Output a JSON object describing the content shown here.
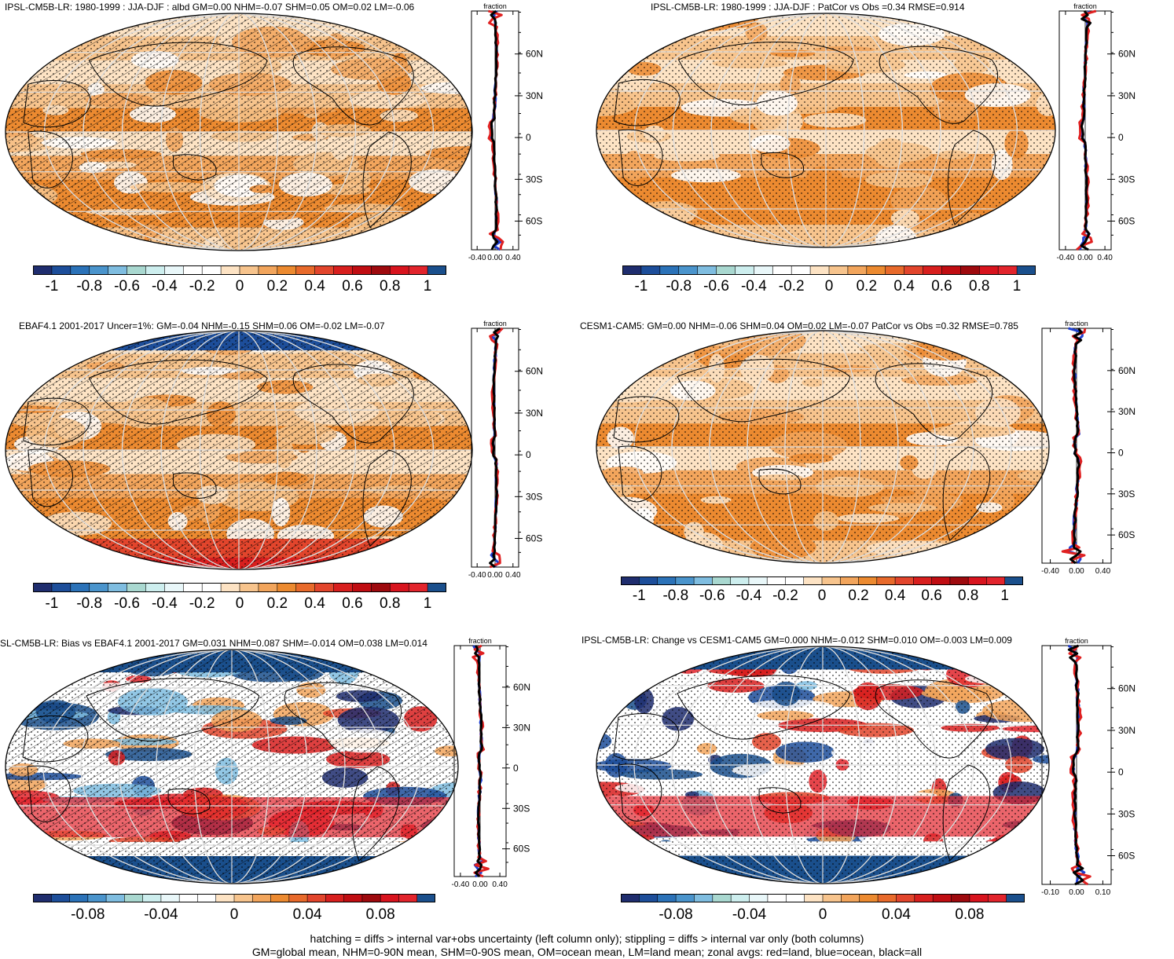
{
  "panels": [
    {
      "title": "IPSL-CM5B-LR: 1980-1999 : JJA-DJF : albd GM=0.00 NHM=-0.07 SHM=0.05 OM=0.02 LM=-0.06",
      "zonal_xlabel": "fraction",
      "zonal_xticks": [
        "-0.40",
        "0.00",
        "0.40"
      ],
      "lat_ticks": [
        "60N",
        "30N",
        "0",
        "30S",
        "60S"
      ],
      "cbar_labels": [
        "-1",
        "-0.8",
        "-0.6",
        "-0.4",
        "-0.2",
        "0",
        "0.2",
        "0.4",
        "0.6",
        "0.8",
        "1"
      ],
      "hatching": true
    },
    {
      "title": "IPSL-CM5B-LR: 1980-1999 : JJA-DJF : PatCor vs Obs =0.34 RMSE=0.914",
      "zonal_xlabel": "fraction",
      "zonal_xticks": [
        "-0.40",
        "0.00",
        "0.40"
      ],
      "lat_ticks": [
        "60N",
        "30N",
        "0",
        "30S",
        "60S"
      ],
      "cbar_labels": [
        "-1",
        "-0.8",
        "-0.6",
        "-0.4",
        "-0.2",
        "0",
        "0.2",
        "0.4",
        "0.6",
        "0.8",
        "1"
      ],
      "hatching": false
    },
    {
      "title": "EBAF4.1 2001-2017 Uncer=1%: GM=-0.04 NHM=-0.15 SHM=0.06 OM=-0.02 LM=-0.07",
      "zonal_xlabel": "fraction",
      "zonal_xticks": [
        "-0.40",
        "0.00",
        "0.40"
      ],
      "lat_ticks": [
        "60N",
        "30N",
        "0",
        "30S",
        "60S"
      ],
      "cbar_labels": [
        "-1",
        "-0.8",
        "-0.6",
        "-0.4",
        "-0.2",
        "0",
        "0.2",
        "0.4",
        "0.6",
        "0.8",
        "1"
      ],
      "hatching": true
    },
    {
      "title": "CESM1-CAM5: GM=0.00 NHM=-0.06 SHM=0.04 OM=0.02 LM=-0.07 PatCor vs Obs =0.32 RMSE=0.785",
      "zonal_xlabel": "fraction",
      "zonal_xticks": [
        "-0.40",
        "0.00",
        "0.40"
      ],
      "lat_ticks": [
        "60N",
        "30N",
        "0",
        "30S",
        "60S"
      ],
      "cbar_labels": [
        "-1",
        "-0.8",
        "-0.6",
        "-0.4",
        "-0.2",
        "0",
        "0.2",
        "0.4",
        "0.6",
        "0.8",
        "1"
      ],
      "hatching": false
    },
    {
      "title": "SL-CM5B-LR: Bias vs EBAF4.1 2001-2017 GM=0.031 NHM=0.087 SHM=-0.014 OM=0.038 LM=0.014",
      "zonal_xlabel": "fraction",
      "zonal_xticks": [
        "-0.40",
        "0.00",
        "0.40"
      ],
      "lat_ticks": [
        "60N",
        "30N",
        "0",
        "30S",
        "60S"
      ],
      "cbar_labels": [
        "-0.08",
        "-0.04",
        "0",
        "0.04",
        "0.08"
      ],
      "hatching": true
    },
    {
      "title": "IPSL-CM5B-LR: Change vs CESM1-CAM5 GM=0.000 NHM=-0.012 SHM=0.010 OM=-0.003 LM=0.009",
      "zonal_xlabel": "fraction",
      "zonal_xticks": [
        "-0.10",
        "0.00",
        "0.10"
      ],
      "lat_ticks": [
        "60N",
        "30N",
        "0",
        "30S",
        "60S"
      ],
      "cbar_labels": [
        "-0.08",
        "-0.04",
        "0",
        "0.04",
        "0.08"
      ],
      "hatching": false
    }
  ],
  "palette": [
    "#1f2d6e",
    "#1d4e9a",
    "#2b72b8",
    "#4a94cc",
    "#7fbde0",
    "#a9d8d0",
    "#cdeeee",
    "#e9f7f9",
    "#ffffff",
    "#ffffff",
    "#fde3c4",
    "#f7c48d",
    "#f2a55c",
    "#ec8a30",
    "#e86a2b",
    "#e2452c",
    "#d81f1e",
    "#c00d12",
    "#9e0a0e",
    "#d8141e",
    "#e2242c",
    "#1a4f8c"
  ],
  "footer": {
    "line1": "hatching = diffs > internal var+obs uncertainty (left column only); stippling = diffs > internal var only (both columns)",
    "line2": "GM=global mean, NHM=0-90N mean, SHM=0-90S mean, OM=ocean mean, LM=land mean; zonal avgs: red=land, blue=ocean, black=all"
  }
}
